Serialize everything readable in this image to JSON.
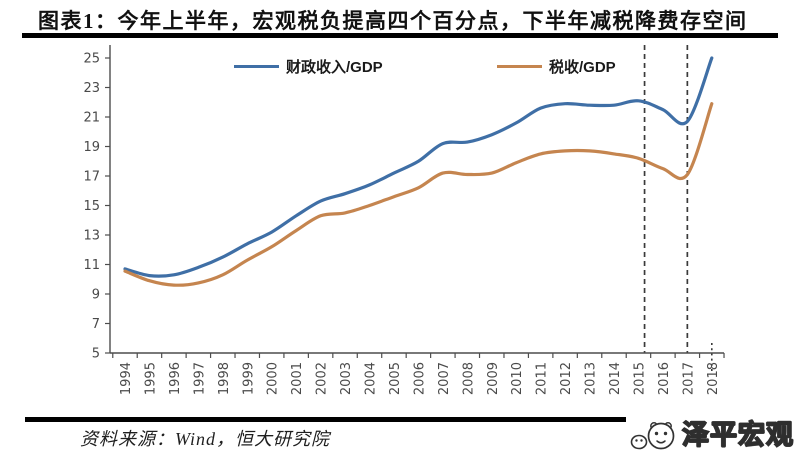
{
  "source": {
    "text": "资料来源：Wind，恒大研究院"
  },
  "watermark": {
    "label": "泽平宏观",
    "icon": "panda-face-icon"
  },
  "chart_data": {
    "type": "line",
    "title": "图表1：今年上半年，宏观税负提高四个百分点，下半年减税降费存空间",
    "xlabel": "",
    "ylabel": "",
    "categories": [
      "1994",
      "1995",
      "1996",
      "1997",
      "1998",
      "1999",
      "2000",
      "2001",
      "2002",
      "2003",
      "2004",
      "2005",
      "2006",
      "2007",
      "2008",
      "2009",
      "2010",
      "2011",
      "2012",
      "2013",
      "2014",
      "2015",
      "2016",
      "2017",
      "2018"
    ],
    "series": [
      {
        "name": "财政收入/GDP",
        "color": "#3F6FA6",
        "values": [
          10.7,
          10.25,
          10.3,
          10.8,
          11.5,
          12.4,
          13.2,
          14.3,
          15.3,
          15.8,
          16.4,
          17.2,
          18.0,
          19.2,
          19.3,
          19.8,
          20.6,
          21.6,
          21.9,
          21.8,
          21.8,
          22.1,
          21.5,
          20.7,
          25.0
        ]
      },
      {
        "name": "税收/GDP",
        "color": "#C5854F",
        "values": [
          10.55,
          9.9,
          9.6,
          9.75,
          10.3,
          11.3,
          12.2,
          13.3,
          14.3,
          14.5,
          15.0,
          15.6,
          16.2,
          17.2,
          17.1,
          17.2,
          17.9,
          18.5,
          18.7,
          18.7,
          18.5,
          18.2,
          17.5,
          17.1,
          21.9
        ]
      }
    ],
    "ylim": [
      5,
      25
    ],
    "yticks": [
      5,
      7,
      9,
      11,
      13,
      15,
      17,
      19,
      21,
      23,
      25
    ],
    "grid": false,
    "legend_position": "top",
    "annotations": {
      "dashed_vlines_years": [
        2015.25,
        2017
      ],
      "axis_continuation_dots_year": 2018
    },
    "colors": {
      "axis": "#4d4d4d",
      "dashed_line": "#3a3a3a"
    }
  }
}
